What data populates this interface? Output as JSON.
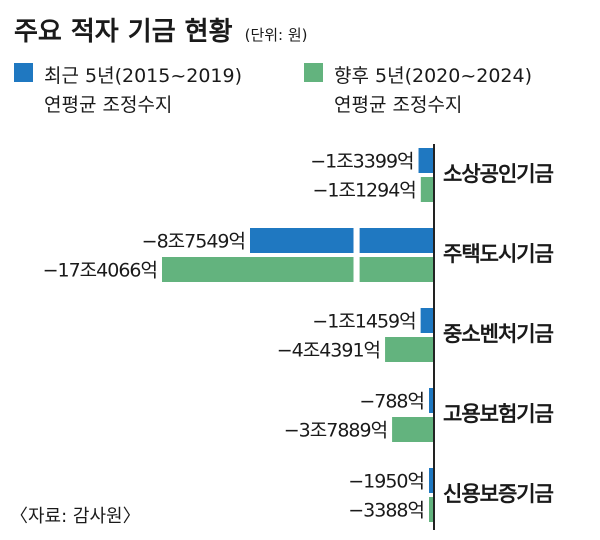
{
  "chart_data": {
    "type": "bar",
    "orientation": "horizontal",
    "title": "주요 적자 기금 현황",
    "unit_label": "(단위: 원)",
    "legend": [
      {
        "name": "최근 5년(2015~2019)",
        "sub": "연평균 조정수지",
        "color": "#1f78c1"
      },
      {
        "name": "향후 5년(2020~2024)",
        "sub": "연평균 조정수지",
        "color": "#63b37e"
      }
    ],
    "categories": [
      "소상공인기금",
      "주택도시기금",
      "중소벤처기금",
      "고용보험기금",
      "신용보증기금"
    ],
    "series": [
      {
        "name": "최근 5년(2015~2019)",
        "values": [
          -13399,
          -87549,
          -11459,
          -788,
          -1950
        ],
        "labels": [
          "−1조3399억",
          "−8조7549억",
          "−1조1459억",
          "−788억",
          "−1950억"
        ]
      },
      {
        "name": "향후 5년(2020~2024)",
        "values": [
          -11294,
          -174066,
          -44391,
          -37889,
          -3388
        ],
        "labels": [
          "−1조1294억",
          "−17조4066억",
          "−4조4391억",
          "−3조7889억",
          "−3388억"
        ]
      }
    ],
    "value_unit": "억 원",
    "axis_break": {
      "category": "주택도시기금",
      "at": -68000
    },
    "source": "〈자료: 감사원〉"
  }
}
